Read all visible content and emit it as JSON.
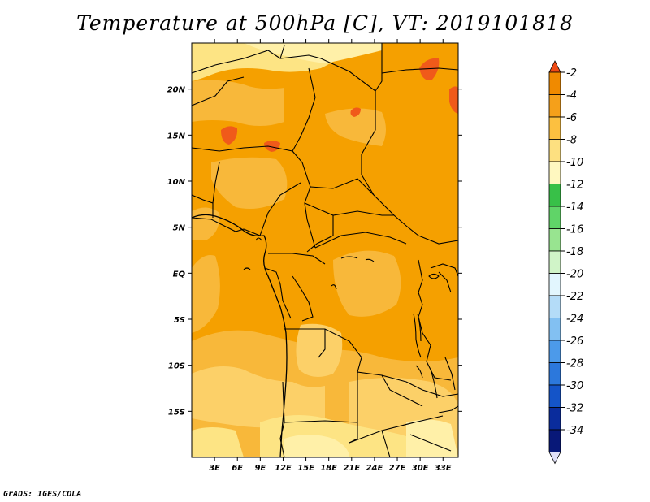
{
  "title": "Temperature at 500hPa [C], VT: 2019101818",
  "credit": "GrADS: IGES/COLA",
  "map": {
    "lon_range": [
      0,
      35
    ],
    "lat_range": [
      -20,
      25
    ],
    "lat_ticks": [
      {
        "value": 20,
        "label": "20N"
      },
      {
        "value": 15,
        "label": "15N"
      },
      {
        "value": 10,
        "label": "10N"
      },
      {
        "value": 5,
        "label": "5N"
      },
      {
        "value": 0,
        "label": "EQ"
      },
      {
        "value": -5,
        "label": "5S"
      },
      {
        "value": -10,
        "label": "10S"
      },
      {
        "value": -15,
        "label": "15S"
      }
    ],
    "lon_ticks": [
      {
        "value": 3,
        "label": "3E"
      },
      {
        "value": 6,
        "label": "6E"
      },
      {
        "value": 9,
        "label": "9E"
      },
      {
        "value": 12,
        "label": "12E"
      },
      {
        "value": 15,
        "label": "15E"
      },
      {
        "value": 18,
        "label": "18E"
      },
      {
        "value": 21,
        "label": "21E"
      },
      {
        "value": 24,
        "label": "24E"
      },
      {
        "value": 27,
        "label": "27E"
      },
      {
        "value": 30,
        "label": "30E"
      },
      {
        "value": 33,
        "label": "33E"
      }
    ]
  },
  "colorbar": {
    "labels": [
      "-2",
      "-4",
      "-6",
      "-8",
      "-10",
      "-12",
      "-14",
      "-16",
      "-18",
      "-20",
      "-22",
      "-24",
      "-26",
      "-28",
      "-30",
      "-32",
      "-34"
    ],
    "colors": [
      "#f04a14",
      "#f08a00",
      "#f5a01a",
      "#fcc040",
      "#fde080",
      "#fff8c0",
      "#38c048",
      "#60d468",
      "#98e490",
      "#d0f4c8",
      "#e2f6fe",
      "#b4dcf8",
      "#82c0f2",
      "#4c9aea",
      "#2c78dc",
      "#1454c8",
      "#0a2c9c",
      "#081878",
      "#e0e0f8"
    ]
  },
  "field_colors": {
    "base": "#f5a000",
    "light": "#f8b83a",
    "lighter": "#fcd068",
    "lightest": "#fde484",
    "pale": "#fff0a8",
    "warm": "#f05a1a"
  }
}
